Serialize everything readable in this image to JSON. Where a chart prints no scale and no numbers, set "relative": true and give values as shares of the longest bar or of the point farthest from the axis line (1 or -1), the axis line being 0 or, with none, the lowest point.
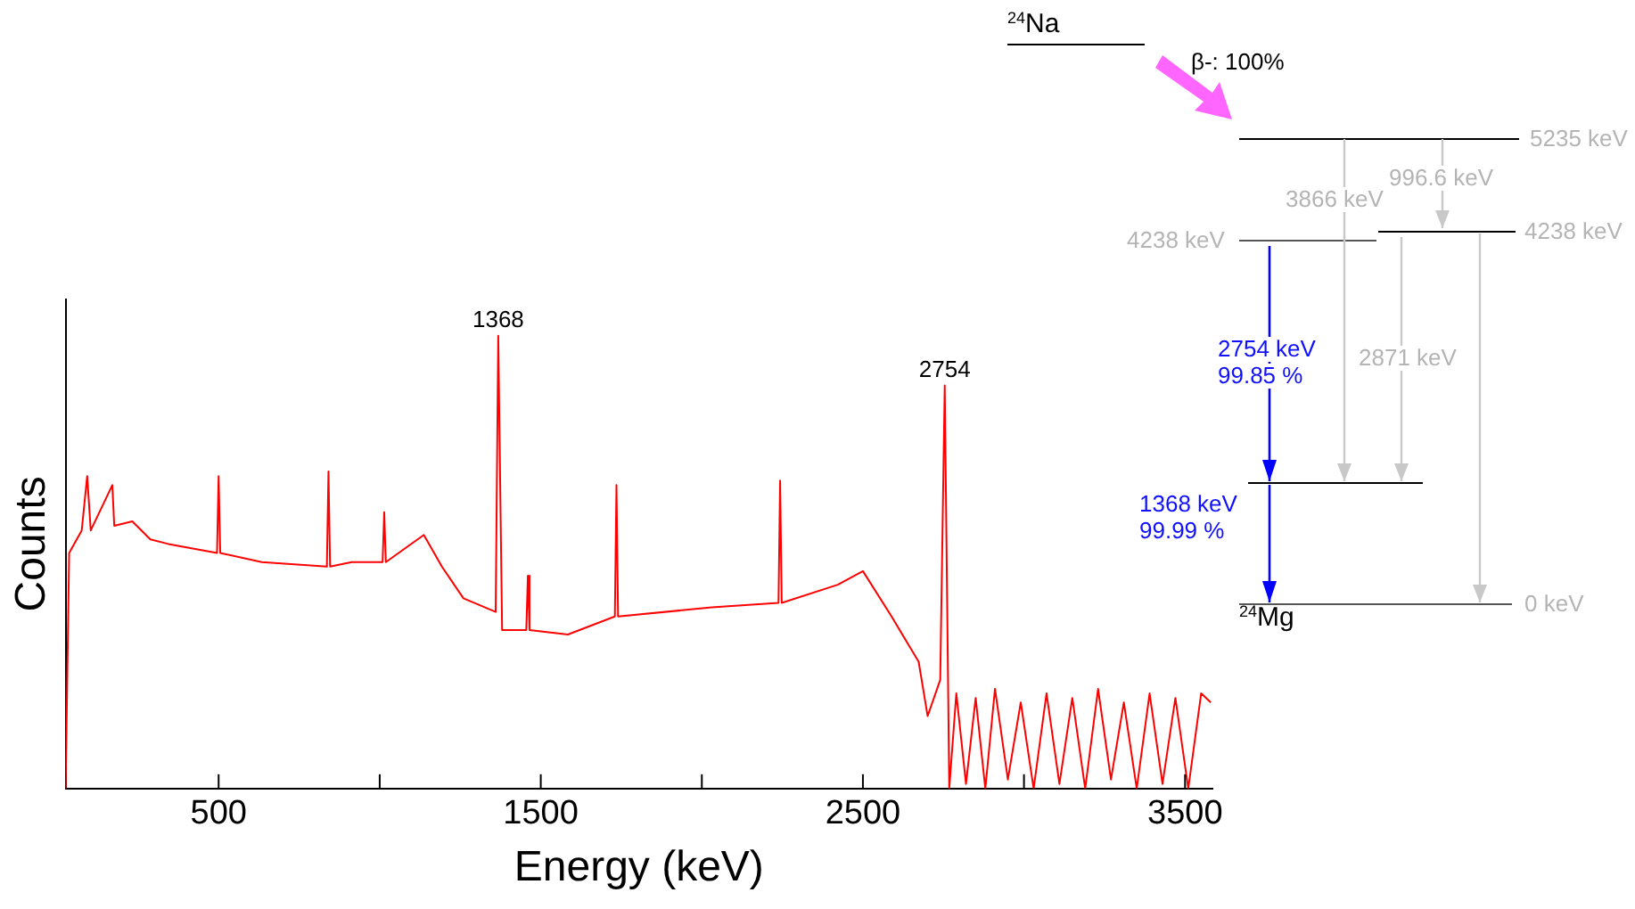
{
  "chart_data": {
    "type": "line",
    "xlabel": "Energy (keV)",
    "ylabel": "Counts",
    "relative": true,
    "color": "#ff0000",
    "marker": "none",
    "grid": false,
    "legend": false,
    "xlim": [
      25,
      3585
    ],
    "xticks": [
      500,
      {
        "value": 1000,
        "label": null
      },
      1500,
      {
        "value": 2000,
        "label": null
      },
      2500,
      {
        "value": 3000,
        "label": null
      },
      3500
    ],
    "x": [
      25,
      36,
      75,
      92,
      103,
      170,
      176,
      232,
      288,
      344,
      495,
      500,
      505,
      634,
      836,
      841,
      846,
      913,
      1009,
      1014,
      1019,
      1137,
      1193,
      1260,
      1360,
      1368,
      1380,
      1455,
      1460,
      1465,
      1584,
      1730,
      1735,
      1740,
      2031,
      2238,
      2243,
      2248,
      2422,
      2500,
      2589,
      2673,
      2701,
      2740,
      2754,
      2768,
      2790,
      2820,
      2850,
      2880,
      2910,
      2950,
      2990,
      3030,
      3070,
      3110,
      3150,
      3190,
      3230,
      3270,
      3310,
      3350,
      3390,
      3430,
      3470,
      3510,
      3550,
      3580
    ],
    "values": [
      0,
      0.52,
      0.57,
      0.69,
      0.57,
      0.67,
      0.58,
      0.59,
      0.55,
      0.54,
      0.52,
      0.69,
      0.52,
      0.5,
      0.49,
      0.7,
      0.49,
      0.5,
      0.5,
      0.61,
      0.5,
      0.56,
      0.49,
      0.42,
      0.39,
      1,
      0.35,
      0.35,
      0.47,
      0.35,
      0.34,
      0.38,
      0.67,
      0.38,
      0.4,
      0.41,
      0.68,
      0.41,
      0.45,
      0.48,
      0.38,
      0.28,
      0.16,
      0.24,
      0.89,
      0,
      0.21,
      0.01,
      0.2,
      0,
      0.22,
      0.02,
      0.19,
      0,
      0.21,
      0.01,
      0.2,
      0,
      0.22,
      0.02,
      0.19,
      0,
      0.21,
      0.01,
      0.2,
      0,
      0.21,
      0.19
    ],
    "annotations": [
      {
        "text": "1368",
        "x": 1368,
        "y": 1
      },
      {
        "text": "2754",
        "x": 2754,
        "y": 0.89
      },
      "$^{24}$Na",
      "β-: 100%",
      "5235 keV",
      "3866 keV",
      "996.6 keV",
      "4238 keV",
      "4238 keV",
      "2754 keV",
      "99.85 %",
      "2871 keV",
      "1368 keV",
      "99.99 %",
      "$^{24}$Mg",
      "0 keV"
    ]
  }
}
